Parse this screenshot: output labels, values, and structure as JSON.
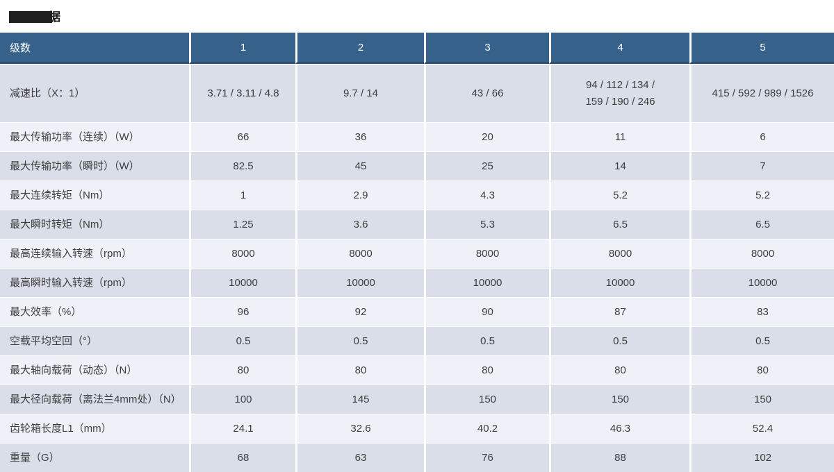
{
  "title": {
    "visible_text": "据"
  },
  "colors": {
    "header_bg": "#35618a",
    "header_border": "#2c4e6f",
    "row_dark": "#d9dee8",
    "row_light": "#eef1f8",
    "body_text": "#3d3d3d",
    "header_text": "#ffffff"
  },
  "table": {
    "header": [
      "级数",
      "1",
      "2",
      "3",
      "4",
      "5"
    ],
    "rows": [
      {
        "label": "减速比（X：1）",
        "values": [
          "3.71 / 3.11 / 4.8",
          "9.7 / 14",
          "43 / 66",
          "94 / 112 / 134 /\n159 / 190 / 246",
          "415 / 592 / 989 / 1526"
        ]
      },
      {
        "label": "最大传输功率（连续）（W）",
        "values": [
          "66",
          "36",
          "20",
          "11",
          "6"
        ]
      },
      {
        "label": "最大传输功率（瞬时）（W）",
        "values": [
          "82.5",
          "45",
          "25",
          "14",
          "7"
        ]
      },
      {
        "label": "最大连续转矩（Nm）",
        "values": [
          "1",
          "2.9",
          "4.3",
          "5.2",
          "5.2"
        ]
      },
      {
        "label": "最大瞬时转矩（Nm）",
        "values": [
          "1.25",
          "3.6",
          "5.3",
          "6.5",
          "6.5"
        ]
      },
      {
        "label": "最高连续输入转速（rpm）",
        "values": [
          "8000",
          "8000",
          "8000",
          "8000",
          "8000"
        ]
      },
      {
        "label": "最高瞬时输入转速（rpm）",
        "values": [
          "10000",
          "10000",
          "10000",
          "10000",
          "10000"
        ]
      },
      {
        "label": "最大效率（%）",
        "values": [
          "96",
          "92",
          "90",
          "87",
          "83"
        ]
      },
      {
        "label": "空载平均空回（°）",
        "values": [
          "0.5",
          "0.5",
          "0.5",
          "0.5",
          "0.5"
        ]
      },
      {
        "label": "最大轴向载荷（动态）（N）",
        "values": [
          "80",
          "80",
          "80",
          "80",
          "80"
        ]
      },
      {
        "label": "最大径向载荷（离法兰4mm处）（N）",
        "values": [
          "100",
          "145",
          "150",
          "150",
          "150"
        ]
      },
      {
        "label": "齿轮箱长度L1（mm）",
        "values": [
          "24.1",
          "32.6",
          "40.2",
          "46.3",
          "52.4"
        ]
      },
      {
        "label": "重量（G）",
        "values": [
          "68",
          "63",
          "76",
          "88",
          "102"
        ]
      }
    ]
  }
}
